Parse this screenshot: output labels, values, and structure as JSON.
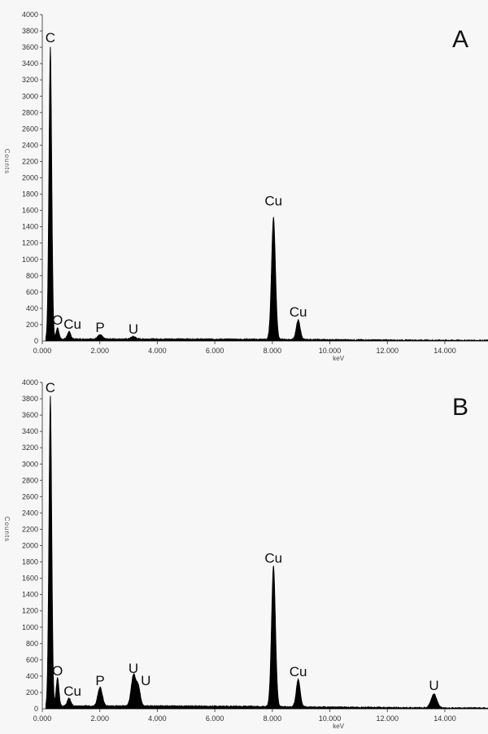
{
  "chart_data": [
    {
      "type": "area",
      "panel_label": "A",
      "xlabel": "keV",
      "ylabel": "Counts",
      "xlim": [
        0,
        15.5
      ],
      "ylim": [
        0,
        4000
      ],
      "x_ticks": [
        "0.000",
        "2.000",
        "4.000",
        "6.000",
        "8.000",
        "10.000",
        "12.000",
        "14.000"
      ],
      "x_tick_values": [
        0,
        2,
        4,
        6,
        8,
        10,
        12,
        14
      ],
      "y_ticks": [
        "200",
        "400",
        "600",
        "800",
        "1000",
        "1200",
        "1400",
        "1600",
        "1800",
        "2000",
        "2200",
        "2400",
        "2600",
        "2800",
        "3000",
        "3200",
        "3400",
        "3600",
        "3800",
        "4000"
      ],
      "y_tick_values": [
        200,
        400,
        600,
        800,
        1000,
        1200,
        1400,
        1600,
        1800,
        2000,
        2200,
        2400,
        2600,
        2800,
        3000,
        3200,
        3400,
        3600,
        3800,
        4000
      ],
      "baseline": 20,
      "peaks": [
        {
          "x": 0.28,
          "y": 3600,
          "w": 0.05
        },
        {
          "x": 0.53,
          "y": 140,
          "w": 0.05
        },
        {
          "x": 0.93,
          "y": 90,
          "w": 0.06
        },
        {
          "x": 2.01,
          "y": 50,
          "w": 0.08
        },
        {
          "x": 3.17,
          "y": 30,
          "w": 0.08
        },
        {
          "x": 8.04,
          "y": 1500,
          "w": 0.07
        },
        {
          "x": 8.9,
          "y": 240,
          "w": 0.07
        }
      ],
      "annotations": [
        {
          "text": "C",
          "x": 0.28,
          "y": 3600
        },
        {
          "text": "O",
          "x": 0.53,
          "y": 140
        },
        {
          "text": "Cu",
          "x": 1.05,
          "y": 90
        },
        {
          "text": "P",
          "x": 2.01,
          "y": 50
        },
        {
          "text": "U",
          "x": 3.17,
          "y": 30
        },
        {
          "text": "Cu",
          "x": 8.04,
          "y": 1600
        },
        {
          "text": "Cu",
          "x": 8.9,
          "y": 240
        }
      ]
    },
    {
      "type": "area",
      "panel_label": "B",
      "xlabel": "keV",
      "ylabel": "Counts",
      "xlim": [
        0,
        15.5
      ],
      "ylim": [
        0,
        4000
      ],
      "x_ticks": [
        "0.000",
        "2.000",
        "4.000",
        "6.000",
        "8.000",
        "10.000",
        "12.000",
        "14.000"
      ],
      "x_tick_values": [
        0,
        2,
        4,
        6,
        8,
        10,
        12,
        14
      ],
      "y_ticks": [
        "200",
        "400",
        "600",
        "800",
        "1000",
        "1200",
        "1400",
        "1600",
        "1800",
        "2000",
        "2200",
        "2400",
        "2600",
        "2800",
        "3000",
        "3200",
        "3400",
        "3600",
        "3800",
        "4000"
      ],
      "y_tick_values": [
        200,
        400,
        600,
        800,
        1000,
        1200,
        1400,
        1600,
        1800,
        2000,
        2200,
        2400,
        2600,
        2800,
        3000,
        3200,
        3400,
        3600,
        3800,
        4000
      ],
      "baseline": 30,
      "peaks": [
        {
          "x": 0.28,
          "y": 3820,
          "w": 0.05
        },
        {
          "x": 0.53,
          "y": 350,
          "w": 0.05
        },
        {
          "x": 0.93,
          "y": 100,
          "w": 0.06
        },
        {
          "x": 2.01,
          "y": 230,
          "w": 0.08
        },
        {
          "x": 3.17,
          "y": 380,
          "w": 0.08
        },
        {
          "x": 3.34,
          "y": 230,
          "w": 0.07
        },
        {
          "x": 8.04,
          "y": 1730,
          "w": 0.07
        },
        {
          "x": 8.9,
          "y": 340,
          "w": 0.07
        },
        {
          "x": 13.62,
          "y": 170,
          "w": 0.1
        }
      ],
      "annotations": [
        {
          "text": "C",
          "x": 0.28,
          "y": 3820
        },
        {
          "text": "O",
          "x": 0.53,
          "y": 350
        },
        {
          "text": "Cu",
          "x": 1.05,
          "y": 100
        },
        {
          "text": "P",
          "x": 2.01,
          "y": 230
        },
        {
          "text": "U",
          "x": 3.17,
          "y": 380
        },
        {
          "text": "U",
          "x": 3.6,
          "y": 230
        },
        {
          "text": "Cu",
          "x": 8.04,
          "y": 1730
        },
        {
          "text": "Cu",
          "x": 8.9,
          "y": 340
        },
        {
          "text": "U",
          "x": 13.62,
          "y": 170
        }
      ]
    }
  ]
}
